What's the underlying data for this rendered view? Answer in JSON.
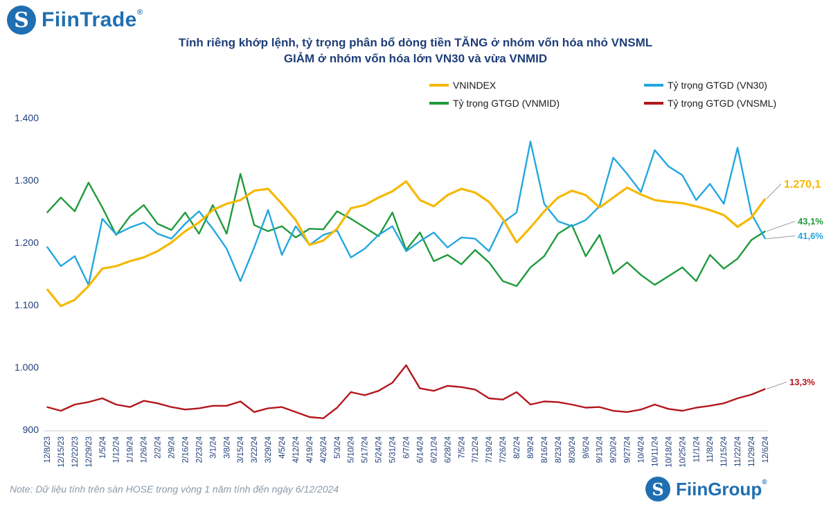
{
  "brand": {
    "logo_icon": "fiintrade-s-logo",
    "name": "FiinTrade",
    "reg": "®"
  },
  "title_line1": "Tính riêng khớp lệnh, tỷ trọng phân bổ dòng tiền TĂNG ở nhóm vốn hóa nhỏ VNSML",
  "title_line2": "GIẢM ở nhóm vốn hóa lớn VN30 và vừa VNMID",
  "note": "Note: Dữ liệu tính trên sàn HOSE trong vòng 1 năm tính đến ngày 6/12/2024",
  "footer_brand": {
    "logo_icon": "fiingroup-s-logo",
    "name": "FiinGroup",
    "reg": "®"
  },
  "chart_data": {
    "type": "line",
    "y_ticks": [
      "1.400",
      "1.300",
      "1.200",
      "1.100",
      "1.000",
      "900"
    ],
    "ylim": [
      900,
      1400
    ],
    "x_tick_labels": [
      "12/8/23",
      "12/15/23",
      "12/22/23",
      "12/29/23",
      "1/5/24",
      "1/12/24",
      "1/19/24",
      "1/26/24",
      "2/2/24",
      "2/9/24",
      "2/16/24",
      "2/23/24",
      "3/1/24",
      "3/8/24",
      "3/15/24",
      "3/22/24",
      "3/29/24",
      "4/5/24",
      "4/12/24",
      "4/19/24",
      "4/26/24",
      "5/3/24",
      "5/10/24",
      "5/17/24",
      "5/24/24",
      "5/31/24",
      "6/7/24",
      "6/14/24",
      "6/21/24",
      "6/28/24",
      "7/5/24",
      "7/12/24",
      "7/19/24",
      "7/26/24",
      "8/2/24",
      "8/9/24",
      "8/16/24",
      "8/23/24",
      "8/30/24",
      "9/6/24",
      "9/13/24",
      "9/20/24",
      "9/27/24",
      "10/4/24",
      "10/11/24",
      "10/18/24",
      "10/25/24",
      "11/1/24",
      "11/8/24",
      "11/15/24",
      "11/22/24",
      "11/29/24",
      "12/6/24"
    ],
    "legend": [
      {
        "name": "VNINDEX",
        "color": "#f5b800"
      },
      {
        "name": "Tỷ trọng GTGD (VN30)",
        "color": "#23a7df"
      },
      {
        "name": "Tỷ trọng GTGD (VNMID)",
        "color": "#1f9a3c"
      },
      {
        "name": "Tỷ trọng GTGD (VNSML)",
        "color": "#b3171d"
      }
    ],
    "end_labels": [
      {
        "series": "VNINDEX",
        "text": "1.270,1",
        "color": "#f5b800"
      },
      {
        "series": "VNMID",
        "text": "43,1%",
        "color": "#1f9a3c"
      },
      {
        "series": "VN30",
        "text": "41,6%",
        "color": "#23a7df"
      },
      {
        "series": "VNSML",
        "text": "13,3%",
        "color": "#b3171d"
      }
    ],
    "series": [
      {
        "name": "VNINDEX",
        "color": "#f5b800",
        "values": [
          1125,
          1098,
          1108,
          1130,
          1158,
          1162,
          1170,
          1176,
          1186,
          1200,
          1218,
          1232,
          1252,
          1262,
          1268,
          1283,
          1286,
          1262,
          1236,
          1196,
          1203,
          1222,
          1255,
          1260,
          1272,
          1282,
          1298,
          1268,
          1258,
          1276,
          1286,
          1280,
          1265,
          1238,
          1200,
          1224,
          1250,
          1272,
          1283,
          1276,
          1256,
          1272,
          1288,
          1277,
          1268,
          1265,
          1263,
          1258,
          1252,
          1244,
          1225,
          1240,
          1270
        ]
      },
      {
        "name": "Tỷ trọng GTGD (VN30)",
        "color": "#23a7df",
        "values": [
          1193,
          1162,
          1178,
          1132,
          1238,
          1213,
          1224,
          1232,
          1214,
          1206,
          1230,
          1250,
          1222,
          1190,
          1138,
          1192,
          1252,
          1180,
          1226,
          1196,
          1212,
          1219,
          1176,
          1190,
          1212,
          1226,
          1186,
          1202,
          1216,
          1192,
          1208,
          1206,
          1186,
          1232,
          1248,
          1362,
          1262,
          1234,
          1226,
          1236,
          1258,
          1336,
          1310,
          1281,
          1348,
          1322,
          1308,
          1268,
          1294,
          1262,
          1352,
          1246,
          1206
        ]
      },
      {
        "name": "Tỷ trọng GTGD (VNMID)",
        "color": "#1f9a3c",
        "values": [
          1248,
          1272,
          1250,
          1296,
          1256,
          1212,
          1242,
          1260,
          1230,
          1220,
          1248,
          1214,
          1260,
          1214,
          1310,
          1228,
          1218,
          1226,
          1208,
          1222,
          1221,
          1250,
          1238,
          1224,
          1210,
          1248,
          1188,
          1216,
          1170,
          1180,
          1165,
          1188,
          1168,
          1138,
          1130,
          1160,
          1178,
          1214,
          1228,
          1178,
          1212,
          1150,
          1168,
          1148,
          1132,
          1146,
          1160,
          1138,
          1180,
          1158,
          1174,
          1204,
          1218
        ]
      },
      {
        "name": "Tỷ trọng GTGD (VNSML)",
        "color": "#b3171d",
        "values": [
          936,
          930,
          940,
          944,
          950,
          940,
          936,
          946,
          942,
          936,
          932,
          934,
          938,
          938,
          945,
          928,
          934,
          936,
          928,
          920,
          918,
          935,
          960,
          955,
          962,
          975,
          1003,
          966,
          962,
          970,
          968,
          964,
          950,
          948,
          960,
          940,
          945,
          944,
          940,
          935,
          936,
          930,
          928,
          932,
          940,
          933,
          930,
          935,
          938,
          942,
          950,
          956,
          965
        ]
      }
    ]
  }
}
